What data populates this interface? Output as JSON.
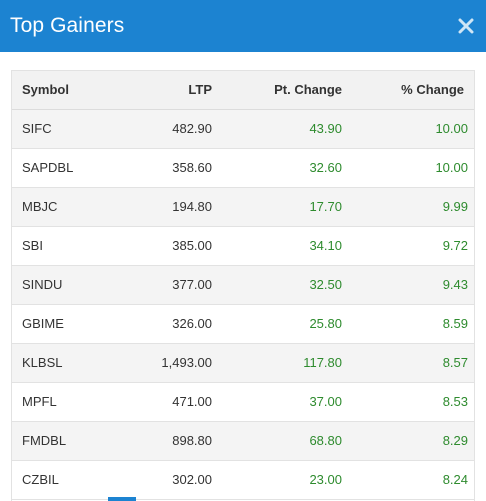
{
  "modal": {
    "title": "Top Gainers",
    "close_icon": "close-icon"
  },
  "colors": {
    "header_bg": "#1c83d1",
    "positive": "#2e8b2e",
    "row_alt": "#f4f4f4"
  },
  "table": {
    "headers": [
      "Symbol",
      "LTP",
      "Pt. Change",
      "% Change"
    ],
    "rows": [
      {
        "symbol": "SIFC",
        "ltp": "482.90",
        "pt_change": "43.90",
        "pct_change": "10.00"
      },
      {
        "symbol": "SAPDBL",
        "ltp": "358.60",
        "pt_change": "32.60",
        "pct_change": "10.00"
      },
      {
        "symbol": "MBJC",
        "ltp": "194.80",
        "pt_change": "17.70",
        "pct_change": "9.99"
      },
      {
        "symbol": "SBI",
        "ltp": "385.00",
        "pt_change": "34.10",
        "pct_change": "9.72"
      },
      {
        "symbol": "SINDU",
        "ltp": "377.00",
        "pt_change": "32.50",
        "pct_change": "9.43"
      },
      {
        "symbol": "GBIME",
        "ltp": "326.00",
        "pt_change": "25.80",
        "pct_change": "8.59"
      },
      {
        "symbol": "KLBSL",
        "ltp": "1,493.00",
        "pt_change": "117.80",
        "pct_change": "8.57"
      },
      {
        "symbol": "MPFL",
        "ltp": "471.00",
        "pt_change": "37.00",
        "pct_change": "8.53"
      },
      {
        "symbol": "FMDBL",
        "ltp": "898.80",
        "pt_change": "68.80",
        "pct_change": "8.29"
      },
      {
        "symbol": "CZBIL",
        "ltp": "302.00",
        "pt_change": "23.00",
        "pct_change": "8.24"
      }
    ]
  }
}
